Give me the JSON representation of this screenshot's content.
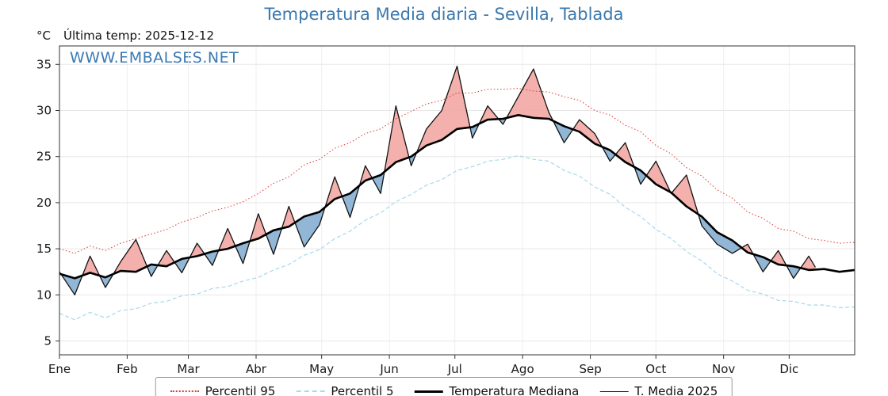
{
  "title": "Temperatura Media diaria - Sevilla, Tablada",
  "header": {
    "unit": "°C",
    "last_temp": "Última temp: 2025-12-12"
  },
  "watermark": "WWW.EMBALSES.NET",
  "colors": {
    "title": "#3a78ad",
    "watermark": "#3a7ab5",
    "p95": "#e03535",
    "p5": "#a6d9ea",
    "median": "#000000",
    "t2025": "#111111",
    "fill_above": "#f2a29e",
    "fill_below": "#85aed2"
  },
  "chart_data": {
    "type": "line",
    "title": "Temperatura Media diaria - Sevilla, Tablada",
    "xlabel": "",
    "ylabel": "°C",
    "ylim": [
      3.5,
      37
    ],
    "yticks": [
      5,
      10,
      15,
      20,
      25,
      30,
      35
    ],
    "grid": true,
    "legend_position": "bottom-center",
    "months": [
      "Ene",
      "Feb",
      "Mar",
      "Abr",
      "May",
      "Jun",
      "Jul",
      "Ago",
      "Sep",
      "Oct",
      "Nov",
      "Dic"
    ],
    "month_start_days": [
      0,
      31,
      59,
      90,
      120,
      151,
      181,
      212,
      243,
      273,
      304,
      334
    ],
    "days": [
      0,
      7,
      14,
      21,
      28,
      35,
      42,
      49,
      56,
      63,
      70,
      77,
      84,
      91,
      98,
      105,
      112,
      119,
      126,
      133,
      140,
      147,
      154,
      161,
      168,
      175,
      182,
      189,
      196,
      203,
      210,
      217,
      224,
      231,
      238,
      245,
      252,
      259,
      266,
      273,
      280,
      287,
      294,
      301,
      308,
      315,
      322,
      329,
      336,
      343,
      350,
      357,
      364
    ],
    "series": [
      {
        "name": "Percentil 95",
        "color": "#e03535",
        "style": "dotted",
        "values": [
          15.0,
          14.5,
          15.3,
          14.8,
          15.6,
          16.1,
          16.6,
          17.1,
          17.9,
          18.4,
          19.1,
          19.5,
          20.1,
          21.0,
          22.1,
          22.8,
          24.1,
          24.7,
          25.9,
          26.5,
          27.5,
          28.0,
          29.1,
          29.9,
          30.7,
          31.1,
          31.9,
          31.9,
          32.3,
          32.3,
          32.4,
          32.1,
          32.0,
          31.5,
          31.1,
          30.0,
          29.5,
          28.4,
          27.7,
          26.2,
          25.3,
          23.8,
          22.9,
          21.4,
          20.5,
          19.0,
          18.3,
          17.2,
          16.9,
          16.1,
          15.9,
          15.6,
          15.7
        ]
      },
      {
        "name": "Percentil 5",
        "color": "#a6d9ea",
        "style": "dashed",
        "values": [
          8.0,
          7.3,
          8.1,
          7.5,
          8.3,
          8.5,
          9.1,
          9.3,
          9.9,
          10.1,
          10.7,
          10.9,
          11.5,
          11.9,
          12.7,
          13.3,
          14.3,
          14.9,
          16.1,
          16.9,
          18.1,
          18.9,
          20.1,
          20.9,
          21.9,
          22.5,
          23.5,
          23.9,
          24.5,
          24.7,
          25.1,
          24.7,
          24.5,
          23.5,
          22.9,
          21.7,
          20.9,
          19.5,
          18.5,
          17.1,
          16.1,
          14.7,
          13.7,
          12.3,
          11.5,
          10.5,
          10.1,
          9.4,
          9.3,
          8.9,
          8.9,
          8.6,
          8.7
        ]
      },
      {
        "name": "Temperatura Mediana",
        "color": "#000000",
        "style": "solid-thick",
        "values": [
          12.3,
          11.8,
          12.4,
          11.9,
          12.6,
          12.5,
          13.3,
          13.1,
          13.9,
          14.2,
          14.7,
          15.0,
          15.6,
          16.1,
          17.0,
          17.4,
          18.5,
          19.0,
          20.4,
          21.0,
          22.4,
          23.0,
          24.4,
          25.0,
          26.2,
          26.8,
          28.0,
          28.2,
          29.0,
          29.1,
          29.5,
          29.2,
          29.1,
          28.3,
          27.7,
          26.4,
          25.7,
          24.4,
          23.5,
          22.0,
          21.1,
          19.6,
          18.5,
          16.8,
          15.9,
          14.6,
          14.1,
          13.3,
          13.1,
          12.7,
          12.8,
          12.5,
          12.7
        ]
      },
      {
        "name": "T. Media 2025",
        "color": "#111111",
        "style": "solid-thin",
        "days": [
          0,
          7,
          14,
          21,
          28,
          35,
          42,
          49,
          56,
          63,
          70,
          77,
          84,
          91,
          98,
          105,
          112,
          119,
          126,
          133,
          140,
          147,
          154,
          161,
          168,
          175,
          182,
          189,
          196,
          203,
          210,
          217,
          224,
          231,
          238,
          245,
          252,
          259,
          266,
          273,
          280,
          287,
          294,
          301,
          308,
          315,
          322,
          329,
          336,
          343,
          346
        ],
        "values": [
          12.5,
          10.0,
          14.2,
          10.8,
          13.6,
          16.0,
          12.0,
          14.8,
          12.4,
          15.6,
          13.2,
          17.2,
          13.4,
          18.8,
          14.4,
          19.6,
          15.2,
          17.6,
          22.8,
          18.4,
          24.0,
          21.0,
          30.5,
          24.0,
          28.0,
          30.0,
          34.8,
          27.0,
          30.5,
          28.5,
          31.5,
          34.5,
          29.8,
          26.5,
          29.0,
          27.5,
          24.5,
          26.5,
          22.0,
          24.5,
          21.0,
          23.0,
          17.5,
          15.5,
          14.5,
          15.5,
          12.5,
          14.8,
          11.8,
          14.2,
          13.0
        ]
      }
    ],
    "fills": {
      "above_color": "#f2a29e",
      "below_color": "#85aed2"
    }
  },
  "legend": {
    "items": [
      {
        "label": "Percentil 95"
      },
      {
        "label": "Percentil 5"
      },
      {
        "label": "Temperatura Mediana"
      },
      {
        "label": "T. Media 2025"
      }
    ]
  }
}
